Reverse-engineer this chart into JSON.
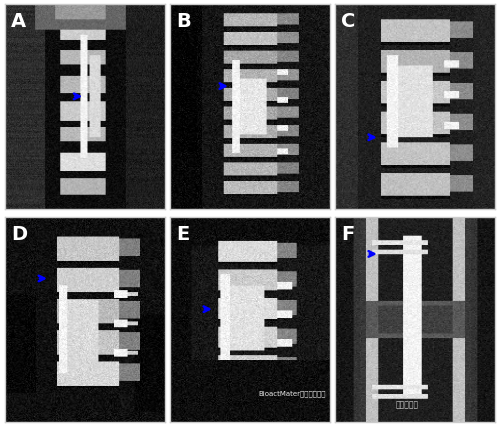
{
  "figure_width": 5.0,
  "figure_height": 4.26,
  "dpi": 100,
  "background_color": "#ffffff",
  "panel_labels": [
    "A",
    "B",
    "C",
    "D",
    "E",
    "F"
  ],
  "label_color": "#ffffff",
  "label_fontsize": 14,
  "label_fontweight": "bold",
  "grid_rows": 2,
  "grid_cols": 3,
  "watermark_text1": "嘉峪检测网",
  "watermark_text2": "BioactMater生物活性材料",
  "watermark_color": "white",
  "watermark_alpha": 0.85,
  "border_color": "#cccccc",
  "border_linewidth": 1.0,
  "panel_bg_colors": [
    "#000000",
    "#111111",
    "#0a0a0a",
    "#050505",
    "#080808",
    "#101010"
  ],
  "arrow_color": "#0000ff",
  "outer_bg": "#d0d0d0"
}
